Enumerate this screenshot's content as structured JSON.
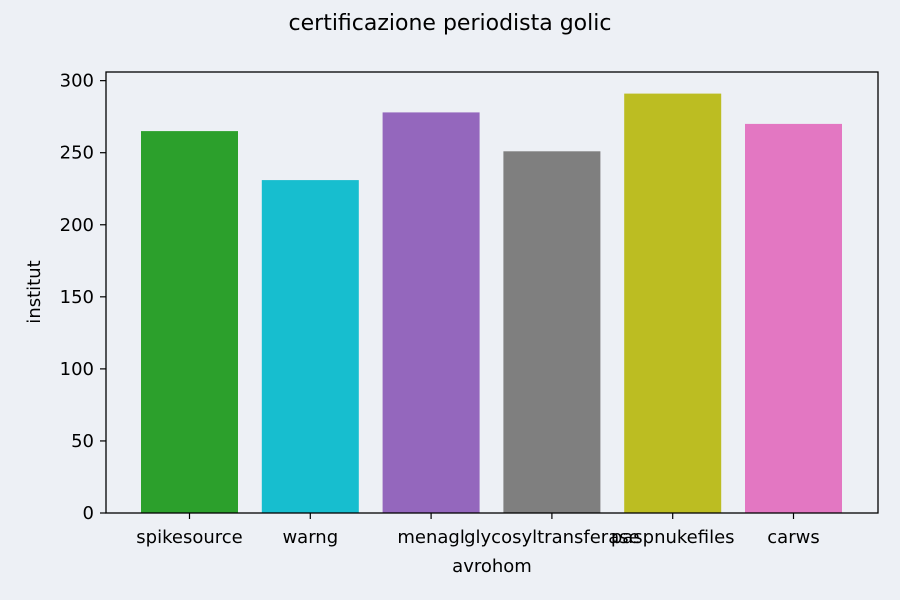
{
  "chart_data": {
    "type": "bar",
    "title": "certificazione periodista golic",
    "xlabel": "avrohom",
    "ylabel": "institut",
    "categories": [
      "spikesource",
      "warng",
      "menagl",
      "glycosyltransferase",
      "paspnukefiles",
      "carws"
    ],
    "values": [
      265,
      231,
      278,
      251,
      291,
      270
    ],
    "colors": [
      "#2ca02c",
      "#17becf",
      "#9467bd",
      "#7f7f7f",
      "#bcbd22",
      "#e377c2"
    ],
    "ylim": [
      0,
      306
    ],
    "yticks": [
      0,
      50,
      100,
      150,
      200,
      250,
      300
    ],
    "grid": false,
    "legend": "none"
  }
}
